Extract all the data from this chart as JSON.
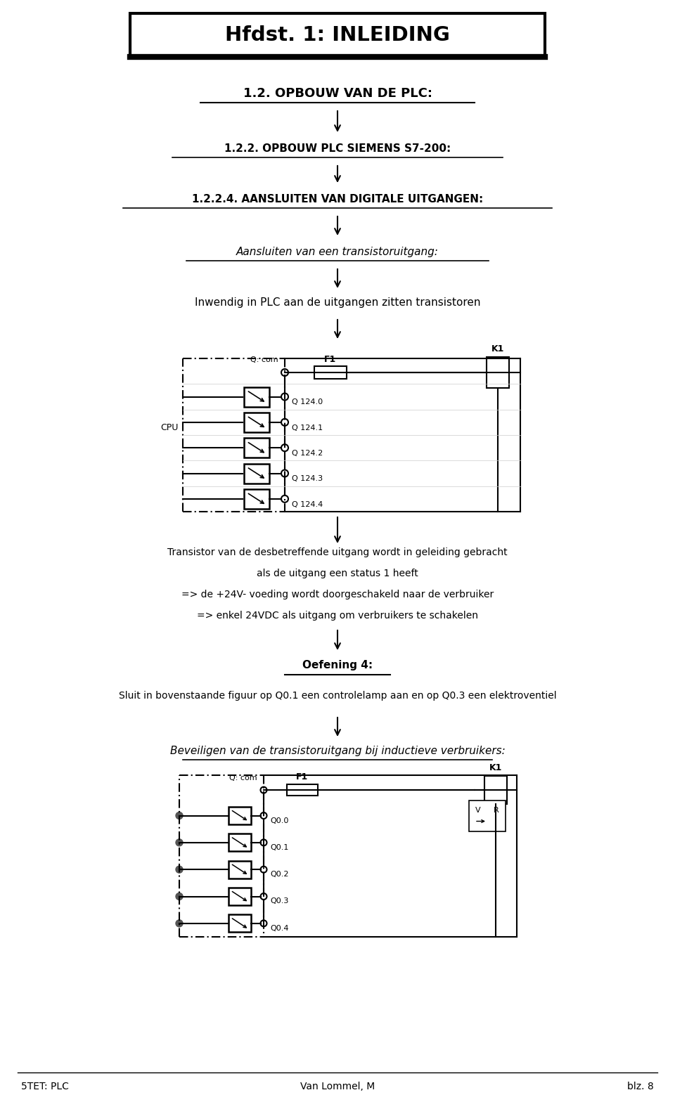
{
  "title": "Hfdst. 1: INLEIDING",
  "subtitle1": "1.2. OPBOUW VAN DE PLC:",
  "subtitle2": "1.2.2. OPBOUW PLC SIEMENS S7-200:",
  "subtitle3": "1.2.2.4. AANSLUITEN VAN DIGITALE UITGANGEN:",
  "text1": "Aansluiten van een transistoruitgang:",
  "text2": "Inwendig in PLC aan de uitgangen zitten transistoren",
  "text3_lines": [
    "Transistor van de desbetreffende uitgang wordt in geleiding gebracht",
    "als de uitgang een status 1 heeft",
    "=> de +24V- voeding wordt doorgeschakeld naar de verbruiker",
    "=> enkel 24VDC als uitgang om verbruikers te schakelen"
  ],
  "text4": "Oefening 4:",
  "text5": "Sluit in bovenstaande figuur op Q0.1 een controlelamp aan en op Q0.3 een elektroventiel",
  "text6": "Beveiligen van de transistoruitgang bij inductieve verbruikers:",
  "footer_left": "5TET: PLC",
  "footer_center": "Van Lommel, M",
  "footer_right": "blz. 8",
  "bg_color": "#ffffff",
  "text_color": "#000000",
  "diagram1_outputs": [
    "Q 124.0",
    "Q 124.1",
    "Q 124.2",
    "Q 124.3",
    "Q 124.4"
  ],
  "diagram2_outputs": [
    "Q0.0",
    "Q0.1",
    "Q0.2",
    "Q0.3",
    "Q0.4"
  ]
}
